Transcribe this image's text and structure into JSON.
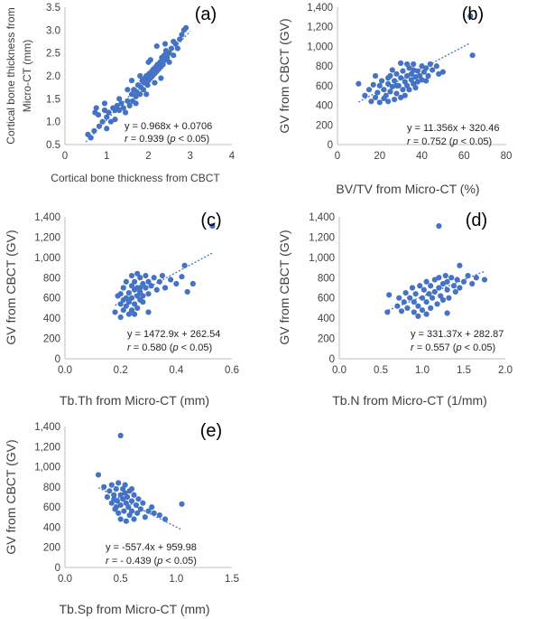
{
  "colors": {
    "marker": "#4472c4",
    "axis": "#bfbfbf",
    "text": "#404040"
  },
  "chart_data": [
    {
      "type": "scatter",
      "panel_label": "(a)",
      "xlabel": "Cortical bone  thickness  from CBCT",
      "ylabel_lines": [
        "Cortical bone  thickness from",
        "Micro-CT (mm)"
      ],
      "xlim": [
        0,
        4
      ],
      "ylim": [
        0.5,
        3.5
      ],
      "xticks": [
        0,
        1,
        2,
        3,
        4
      ],
      "xtick_labels": [
        "0",
        "1",
        "2",
        "3",
        "4"
      ],
      "yticks": [
        0.5,
        1.0,
        1.5,
        2.0,
        2.5,
        3.0,
        3.5
      ],
      "ytick_labels": [
        "0.5",
        "1.0",
        "1.5",
        "2.0",
        "2.5",
        "3.0",
        "3.5"
      ],
      "equation": "y = 0.968x + 0.0706",
      "r_label": "r = 0.939 (p < 0.05)",
      "trend": {
        "slope": 0.968,
        "intercept": 0.0706,
        "x_range": [
          0.5,
          3.0
        ]
      },
      "points": [
        [
          0.55,
          0.72
        ],
        [
          0.62,
          0.65
        ],
        [
          0.7,
          0.8
        ],
        [
          0.72,
          1.2
        ],
        [
          0.75,
          1.3
        ],
        [
          0.8,
          1.15
        ],
        [
          0.82,
          0.9
        ],
        [
          0.9,
          1.0
        ],
        [
          0.95,
          1.25
        ],
        [
          1.0,
          0.85
        ],
        [
          1.05,
          1.2
        ],
        [
          1.1,
          1.0
        ],
        [
          1.15,
          1.3
        ],
        [
          1.2,
          1.05
        ],
        [
          1.25,
          1.35
        ],
        [
          1.3,
          1.25
        ],
        [
          1.35,
          1.4
        ],
        [
          1.4,
          1.3
        ],
        [
          1.45,
          1.2
        ],
        [
          1.5,
          1.45
        ],
        [
          1.55,
          1.35
        ],
        [
          1.6,
          1.6
        ],
        [
          1.62,
          1.45
        ],
        [
          1.65,
          1.7
        ],
        [
          1.7,
          1.55
        ],
        [
          1.72,
          1.65
        ],
        [
          1.75,
          1.8
        ],
        [
          1.8,
          1.6
        ],
        [
          1.82,
          1.75
        ],
        [
          1.85,
          1.9
        ],
        [
          1.88,
          1.7
        ],
        [
          1.9,
          1.85
        ],
        [
          1.92,
          1.95
        ],
        [
          1.95,
          2.0
        ],
        [
          1.98,
          1.8
        ],
        [
          2.0,
          1.9
        ],
        [
          2.02,
          2.05
        ],
        [
          2.05,
          1.95
        ],
        [
          2.08,
          2.1
        ],
        [
          2.1,
          2.0
        ],
        [
          2.12,
          2.15
        ],
        [
          2.15,
          2.05
        ],
        [
          2.18,
          2.2
        ],
        [
          2.2,
          2.1
        ],
        [
          2.22,
          2.25
        ],
        [
          2.25,
          2.15
        ],
        [
          2.28,
          2.3
        ],
        [
          2.3,
          2.2
        ],
        [
          2.32,
          2.4
        ],
        [
          2.35,
          2.25
        ],
        [
          2.38,
          2.45
        ],
        [
          2.4,
          2.35
        ],
        [
          2.42,
          2.55
        ],
        [
          2.45,
          2.4
        ],
        [
          2.5,
          2.5
        ],
        [
          2.55,
          2.6
        ],
        [
          2.6,
          2.45
        ],
        [
          2.65,
          2.7
        ],
        [
          2.7,
          2.6
        ],
        [
          2.75,
          2.8
        ],
        [
          2.8,
          2.9
        ],
        [
          2.85,
          3.0
        ],
        [
          2.9,
          3.05
        ],
        [
          1.6,
          1.9
        ],
        [
          1.7,
          1.4
        ],
        [
          2.2,
          2.65
        ],
        [
          2.3,
          1.95
        ],
        [
          1.5,
          1.7
        ],
        [
          2.0,
          2.3
        ],
        [
          1.8,
          2.0
        ],
        [
          2.4,
          2.7
        ],
        [
          2.6,
          2.75
        ],
        [
          1.95,
          1.6
        ],
        [
          2.15,
          1.85
        ],
        [
          1.0,
          1.1
        ],
        [
          1.2,
          1.25
        ],
        [
          0.95,
          1.4
        ],
        [
          1.3,
          1.5
        ],
        [
          2.05,
          2.35
        ],
        [
          2.5,
          2.3
        ]
      ]
    },
    {
      "type": "scatter",
      "panel_label": "(b)",
      "xlabel": "BV/TV from Micro-CT (%)",
      "ylabel_lines": [
        "GV from CBCT  (GV)"
      ],
      "xlim": [
        0,
        80
      ],
      "ylim": [
        0,
        1400
      ],
      "xticks": [
        0,
        20,
        40,
        60,
        80
      ],
      "xtick_labels": [
        "0",
        "20",
        "40",
        "60",
        "80"
      ],
      "yticks": [
        0,
        200,
        400,
        600,
        800,
        1000,
        1200,
        1400
      ],
      "ytick_labels": [
        "0",
        "200",
        "400",
        "600",
        "800",
        "1,000",
        "1,200",
        "1,400"
      ],
      "equation": "y = 11.356x + 320.46",
      "r_label": "r = 0.752 (p < 0.05)",
      "trend": {
        "slope": 11.356,
        "intercept": 320.46,
        "x_range": [
          10,
          63
        ]
      },
      "points": [
        [
          10,
          620
        ],
        [
          13,
          500
        ],
        [
          15,
          560
        ],
        [
          16,
          440
        ],
        [
          17,
          610
        ],
        [
          18,
          480
        ],
        [
          19,
          530
        ],
        [
          20,
          600
        ],
        [
          20,
          430
        ],
        [
          21,
          650
        ],
        [
          22,
          470
        ],
        [
          22,
          560
        ],
        [
          23,
          500
        ],
        [
          24,
          620
        ],
        [
          24,
          440
        ],
        [
          25,
          700
        ],
        [
          25,
          540
        ],
        [
          26,
          590
        ],
        [
          27,
          460
        ],
        [
          27,
          650
        ],
        [
          28,
          720
        ],
        [
          28,
          520
        ],
        [
          29,
          600
        ],
        [
          30,
          680
        ],
        [
          30,
          480
        ],
        [
          31,
          560
        ],
        [
          31,
          750
        ],
        [
          32,
          640
        ],
        [
          32,
          500
        ],
        [
          33,
          700
        ],
        [
          33,
          600
        ],
        [
          34,
          780
        ],
        [
          34,
          560
        ],
        [
          35,
          660
        ],
        [
          35,
          720
        ],
        [
          36,
          620
        ],
        [
          36,
          820
        ],
        [
          37,
          690
        ],
        [
          37,
          580
        ],
        [
          38,
          750
        ],
        [
          38,
          640
        ],
        [
          39,
          700
        ],
        [
          40,
          800
        ],
        [
          40,
          660
        ],
        [
          41,
          740
        ],
        [
          42,
          780
        ],
        [
          43,
          700
        ],
        [
          44,
          820
        ],
        [
          45,
          760
        ],
        [
          47,
          800
        ],
        [
          48,
          720
        ],
        [
          50,
          740
        ],
        [
          26,
          760
        ],
        [
          30,
          830
        ],
        [
          33,
          820
        ],
        [
          36,
          760
        ],
        [
          24,
          680
        ],
        [
          28,
          600
        ],
        [
          42,
          650
        ],
        [
          18,
          700
        ],
        [
          63,
          1310
        ],
        [
          64,
          910
        ]
      ]
    },
    {
      "type": "scatter",
      "panel_label": "(c)",
      "xlabel": "Tb.Th from Micro-CT (mm)",
      "ylabel_lines": [
        "GV from CBCT (GV)"
      ],
      "xlim": [
        0,
        0.6
      ],
      "ylim": [
        0,
        1400
      ],
      "xticks": [
        0,
        0.2,
        0.4,
        0.6
      ],
      "xtick_labels": [
        "0.0",
        "0.2",
        "0.4",
        "0.6"
      ],
      "yticks": [
        0,
        200,
        400,
        600,
        800,
        1000,
        1200,
        1400
      ],
      "ytick_labels": [
        "0",
        "200",
        "400",
        "600",
        "800",
        "1,000",
        "1,200",
        "1,400"
      ],
      "equation": "y = 1472.9x + 262.54",
      "r_label": "r = 0.580 (p < 0.05)",
      "trend": {
        "slope": 1472.9,
        "intercept": 262.54,
        "x_range": [
          0.18,
          0.53
        ]
      },
      "points": [
        [
          0.18,
          460
        ],
        [
          0.19,
          620
        ],
        [
          0.2,
          410
        ],
        [
          0.2,
          540
        ],
        [
          0.21,
          700
        ],
        [
          0.21,
          480
        ],
        [
          0.22,
          600
        ],
        [
          0.22,
          520
        ],
        [
          0.23,
          650
        ],
        [
          0.23,
          440
        ],
        [
          0.23,
          560
        ],
        [
          0.24,
          720
        ],
        [
          0.24,
          600
        ],
        [
          0.24,
          480
        ],
        [
          0.25,
          680
        ],
        [
          0.25,
          540
        ],
        [
          0.25,
          760
        ],
        [
          0.26,
          620
        ],
        [
          0.26,
          700
        ],
        [
          0.26,
          500
        ],
        [
          0.27,
          800
        ],
        [
          0.27,
          660
        ],
        [
          0.27,
          580
        ],
        [
          0.28,
          740
        ],
        [
          0.28,
          620
        ],
        [
          0.29,
          820
        ],
        [
          0.29,
          700
        ],
        [
          0.3,
          760
        ],
        [
          0.3,
          640
        ],
        [
          0.31,
          720
        ],
        [
          0.32,
          800
        ],
        [
          0.33,
          680
        ],
        [
          0.34,
          760
        ],
        [
          0.35,
          820
        ],
        [
          0.36,
          700
        ],
        [
          0.38,
          780
        ],
        [
          0.4,
          740
        ],
        [
          0.42,
          810
        ],
        [
          0.44,
          660
        ],
        [
          0.46,
          740
        ],
        [
          0.2,
          640
        ],
        [
          0.22,
          760
        ],
        [
          0.24,
          820
        ],
        [
          0.26,
          840
        ],
        [
          0.28,
          560
        ],
        [
          0.3,
          460
        ],
        [
          0.21,
          580
        ],
        [
          0.25,
          440
        ],
        [
          0.27,
          700
        ],
        [
          0.43,
          920
        ],
        [
          0.53,
          1310
        ]
      ]
    },
    {
      "type": "scatter",
      "panel_label": "(d)",
      "xlabel": "Tb.N from Micro-CT (1/mm)",
      "ylabel_lines": [
        "GV from CBCT (GV)"
      ],
      "xlim": [
        0,
        2
      ],
      "ylim": [
        0,
        1400
      ],
      "xticks": [
        0,
        0.5,
        1,
        1.5,
        2
      ],
      "xtick_labels": [
        "0.0",
        "0.5",
        "1.0",
        "1.5",
        "2.0"
      ],
      "yticks": [
        0,
        200,
        400,
        600,
        800,
        1000,
        1200,
        1400
      ],
      "ytick_labels": [
        "0",
        "200",
        "400",
        "600",
        "800",
        "1,000",
        "1,200",
        "1,400"
      ],
      "equation": "y = 331.37x + 282.87",
      "r_label": "r = 0.557 (p < 0.05)",
      "trend": {
        "slope": 331.37,
        "intercept": 282.87,
        "x_range": [
          0.55,
          1.75
        ]
      },
      "points": [
        [
          0.58,
          460
        ],
        [
          0.6,
          630
        ],
        [
          0.7,
          520
        ],
        [
          0.72,
          600
        ],
        [
          0.75,
          470
        ],
        [
          0.78,
          560
        ],
        [
          0.8,
          650
        ],
        [
          0.82,
          500
        ],
        [
          0.85,
          600
        ],
        [
          0.88,
          700
        ],
        [
          0.9,
          460
        ],
        [
          0.9,
          560
        ],
        [
          0.92,
          640
        ],
        [
          0.95,
          520
        ],
        [
          0.97,
          720
        ],
        [
          1.0,
          600
        ],
        [
          1.0,
          480
        ],
        [
          1.02,
          680
        ],
        [
          1.05,
          560
        ],
        [
          1.05,
          760
        ],
        [
          1.08,
          640
        ],
        [
          1.1,
          500
        ],
        [
          1.1,
          720
        ],
        [
          1.12,
          600
        ],
        [
          1.15,
          780
        ],
        [
          1.15,
          660
        ],
        [
          1.18,
          540
        ],
        [
          1.2,
          700
        ],
        [
          1.2,
          800
        ],
        [
          1.22,
          620
        ],
        [
          1.25,
          740
        ],
        [
          1.25,
          580
        ],
        [
          1.28,
          820
        ],
        [
          1.3,
          680
        ],
        [
          1.3,
          760
        ],
        [
          1.32,
          600
        ],
        [
          1.35,
          800
        ],
        [
          1.38,
          720
        ],
        [
          1.4,
          660
        ],
        [
          1.42,
          780
        ],
        [
          1.45,
          700
        ],
        [
          1.5,
          760
        ],
        [
          1.55,
          820
        ],
        [
          1.6,
          740
        ],
        [
          1.65,
          800
        ],
        [
          1.75,
          780
        ],
        [
          1.45,
          920
        ],
        [
          1.2,
          1310
        ],
        [
          0.95,
          420
        ],
        [
          1.3,
          450
        ],
        [
          1.05,
          440
        ]
      ]
    },
    {
      "type": "scatter",
      "panel_label": "(e)",
      "xlabel": "Tb.Sp from Micro-CT (mm)",
      "ylabel_lines": [
        "GV from CBCT (GV)"
      ],
      "xlim": [
        0,
        1.5
      ],
      "ylim": [
        0,
        1400
      ],
      "xticks": [
        0,
        0.5,
        1,
        1.5
      ],
      "xtick_labels": [
        "0.0",
        "0.5",
        "1.0",
        "1.5"
      ],
      "yticks": [
        0,
        200,
        400,
        600,
        800,
        1000,
        1200,
        1400
      ],
      "ytick_labels": [
        "0",
        "200",
        "400",
        "600",
        "800",
        "1,000",
        "1,200",
        "1,400"
      ],
      "equation": "y = -557.4x + 959.98",
      "r_label": "r = - 0.439 (p < 0.05)",
      "trend": {
        "slope": -557.4,
        "intercept": 959.98,
        "x_range": [
          0.3,
          1.05
        ]
      },
      "points": [
        [
          0.3,
          920
        ],
        [
          0.35,
          800
        ],
        [
          0.38,
          700
        ],
        [
          0.4,
          760
        ],
        [
          0.42,
          820
        ],
        [
          0.42,
          640
        ],
        [
          0.44,
          720
        ],
        [
          0.45,
          580
        ],
        [
          0.46,
          780
        ],
        [
          0.47,
          660
        ],
        [
          0.48,
          840
        ],
        [
          0.48,
          540
        ],
        [
          0.5,
          720
        ],
        [
          0.5,
          620
        ],
        [
          0.5,
          480
        ],
        [
          0.52,
          780
        ],
        [
          0.52,
          680
        ],
        [
          0.53,
          560
        ],
        [
          0.54,
          740
        ],
        [
          0.55,
          640
        ],
        [
          0.55,
          460
        ],
        [
          0.56,
          700
        ],
        [
          0.57,
          600
        ],
        [
          0.58,
          520
        ],
        [
          0.58,
          760
        ],
        [
          0.6,
          660
        ],
        [
          0.6,
          560
        ],
        [
          0.62,
          720
        ],
        [
          0.62,
          480
        ],
        [
          0.64,
          620
        ],
        [
          0.65,
          540
        ],
        [
          0.66,
          680
        ],
        [
          0.68,
          580
        ],
        [
          0.7,
          640
        ],
        [
          0.72,
          500
        ],
        [
          0.75,
          560
        ],
        [
          0.78,
          600
        ],
        [
          0.8,
          540
        ],
        [
          0.85,
          520
        ],
        [
          0.9,
          480
        ],
        [
          1.05,
          630
        ],
        [
          0.46,
          600
        ],
        [
          0.54,
          820
        ],
        [
          0.6,
          780
        ],
        [
          0.44,
          680
        ],
        [
          0.5,
          1310
        ]
      ]
    }
  ]
}
